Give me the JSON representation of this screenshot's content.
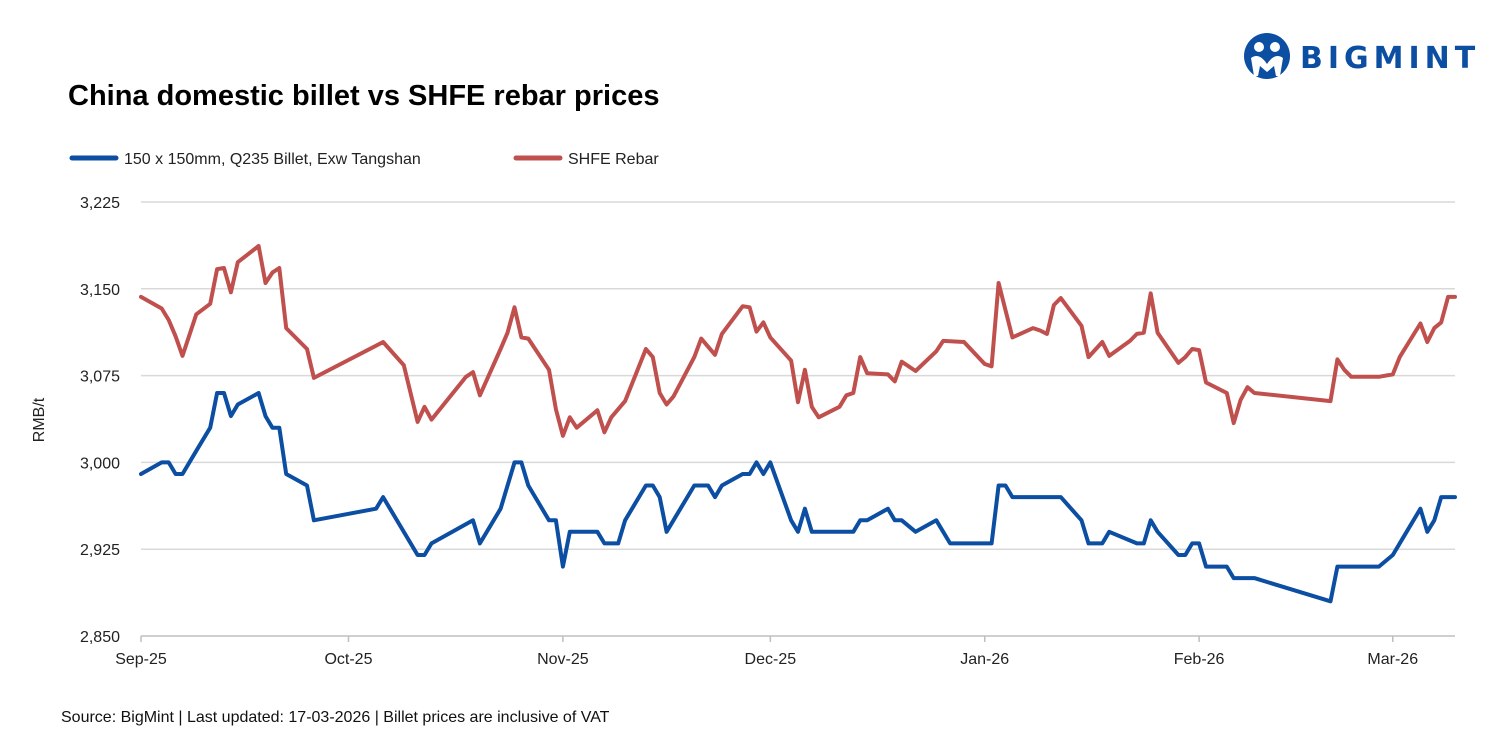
{
  "title": "China domestic billet vs SHFE rebar prices",
  "source_note": "Source: BigMint | Last updated: 17-03-2026 | Billet prices are inclusive of VAT",
  "logo": {
    "text": "BIGMINT",
    "color": "#0B4EA2"
  },
  "chart_data": {
    "type": "line",
    "title": "China domestic billet vs SHFE rebar prices",
    "xlabel": "",
    "ylabel": "RMB/t",
    "ylim": [
      2850,
      3225
    ],
    "yticks": [
      2850,
      2925,
      3000,
      3075,
      3150,
      3225
    ],
    "ytick_labels": [
      "2,850",
      "2,925",
      "3,000",
      "3,075",
      "3,150",
      "3,225"
    ],
    "xlim": [
      "2025-09-01",
      "2026-03-10"
    ],
    "xticks": [
      "2025-09-01",
      "2025-10-01",
      "2025-11-01",
      "2025-12-01",
      "2026-01-01",
      "2026-02-01",
      "2026-03-01"
    ],
    "xtick_labels": [
      "Sep-25",
      "Oct-25",
      "Nov-25",
      "Dec-25",
      "Jan-26",
      "Feb-26",
      "Mar-26"
    ],
    "grid": "horizontal",
    "legend_placement": "top-left",
    "series": [
      {
        "name": "150 x 150mm, Q235 Billet, Exw Tangshan",
        "color": "#0B4EA2",
        "points": [
          [
            "2025-09-01",
            2990
          ],
          [
            "2025-09-04",
            3000
          ],
          [
            "2025-09-05",
            3000
          ],
          [
            "2025-09-06",
            2990
          ],
          [
            "2025-09-07",
            2990
          ],
          [
            "2025-09-09",
            3010
          ],
          [
            "2025-09-11",
            3030
          ],
          [
            "2025-09-12",
            3060
          ],
          [
            "2025-09-13",
            3060
          ],
          [
            "2025-09-14",
            3040
          ],
          [
            "2025-09-15",
            3050
          ],
          [
            "2025-09-18",
            3060
          ],
          [
            "2025-09-19",
            3040
          ],
          [
            "2025-09-20",
            3030
          ],
          [
            "2025-09-21",
            3030
          ],
          [
            "2025-09-22",
            2990
          ],
          [
            "2025-09-25",
            2980
          ],
          [
            "2025-09-26",
            2950
          ],
          [
            "2025-10-05",
            2960
          ],
          [
            "2025-10-06",
            2970
          ],
          [
            "2025-10-11",
            2920
          ],
          [
            "2025-10-12",
            2920
          ],
          [
            "2025-10-13",
            2930
          ],
          [
            "2025-10-19",
            2950
          ],
          [
            "2025-10-20",
            2930
          ],
          [
            "2025-10-23",
            2960
          ],
          [
            "2025-10-25",
            3000
          ],
          [
            "2025-10-26",
            3000
          ],
          [
            "2025-10-27",
            2980
          ],
          [
            "2025-10-30",
            2950
          ],
          [
            "2025-10-31",
            2950
          ],
          [
            "2025-11-01",
            2910
          ],
          [
            "2025-11-02",
            2940
          ],
          [
            "2025-11-06",
            2940
          ],
          [
            "2025-11-07",
            2930
          ],
          [
            "2025-11-09",
            2930
          ],
          [
            "2025-11-10",
            2950
          ],
          [
            "2025-11-13",
            2980
          ],
          [
            "2025-11-14",
            2980
          ],
          [
            "2025-11-15",
            2970
          ],
          [
            "2025-11-16",
            2940
          ],
          [
            "2025-11-20",
            2980
          ],
          [
            "2025-11-22",
            2980
          ],
          [
            "2025-11-23",
            2970
          ],
          [
            "2025-11-24",
            2980
          ],
          [
            "2025-11-27",
            2990
          ],
          [
            "2025-11-28",
            2990
          ],
          [
            "2025-11-29",
            3000
          ],
          [
            "2025-11-30",
            2990
          ],
          [
            "2025-12-01",
            3000
          ],
          [
            "2025-12-04",
            2950
          ],
          [
            "2025-12-05",
            2940
          ],
          [
            "2025-12-06",
            2960
          ],
          [
            "2025-12-07",
            2940
          ],
          [
            "2025-12-13",
            2940
          ],
          [
            "2025-12-14",
            2950
          ],
          [
            "2025-12-15",
            2950
          ],
          [
            "2025-12-18",
            2960
          ],
          [
            "2025-12-19",
            2950
          ],
          [
            "2025-12-20",
            2950
          ],
          [
            "2025-12-22",
            2940
          ],
          [
            "2025-12-25",
            2950
          ],
          [
            "2025-12-27",
            2930
          ],
          [
            "2026-01-02",
            2930
          ],
          [
            "2026-01-03",
            2980
          ],
          [
            "2026-01-04",
            2980
          ],
          [
            "2026-01-05",
            2970
          ],
          [
            "2026-01-12",
            2970
          ],
          [
            "2026-01-15",
            2950
          ],
          [
            "2026-01-16",
            2930
          ],
          [
            "2026-01-18",
            2930
          ],
          [
            "2026-01-19",
            2940
          ],
          [
            "2026-01-23",
            2930
          ],
          [
            "2026-01-24",
            2930
          ],
          [
            "2026-01-25",
            2950
          ],
          [
            "2026-01-26",
            2940
          ],
          [
            "2026-01-29",
            2920
          ],
          [
            "2026-01-30",
            2920
          ],
          [
            "2026-01-31",
            2930
          ],
          [
            "2026-02-01",
            2930
          ],
          [
            "2026-02-02",
            2910
          ],
          [
            "2026-02-05",
            2910
          ],
          [
            "2026-02-06",
            2900
          ],
          [
            "2026-02-09",
            2900
          ],
          [
            "2026-02-20",
            2880
          ],
          [
            "2026-02-21",
            2910
          ],
          [
            "2026-02-27",
            2910
          ],
          [
            "2026-03-01",
            2920
          ],
          [
            "2026-03-05",
            2960
          ],
          [
            "2026-03-06",
            2940
          ],
          [
            "2026-03-07",
            2950
          ],
          [
            "2026-03-08",
            2970
          ],
          [
            "2026-03-10",
            2970
          ]
        ]
      },
      {
        "name": "SHFE Rebar",
        "color": "#C0504D",
        "points": [
          [
            "2025-09-01",
            3143
          ],
          [
            "2025-09-04",
            3133
          ],
          [
            "2025-09-05",
            3123
          ],
          [
            "2025-09-06",
            3109
          ],
          [
            "2025-09-07",
            3092
          ],
          [
            "2025-09-09",
            3128
          ],
          [
            "2025-09-11",
            3137
          ],
          [
            "2025-09-12",
            3167
          ],
          [
            "2025-09-13",
            3168
          ],
          [
            "2025-09-14",
            3147
          ],
          [
            "2025-09-15",
            3173
          ],
          [
            "2025-09-18",
            3187
          ],
          [
            "2025-09-19",
            3155
          ],
          [
            "2025-09-20",
            3164
          ],
          [
            "2025-09-21",
            3168
          ],
          [
            "2025-09-22",
            3116
          ],
          [
            "2025-09-25",
            3098
          ],
          [
            "2025-09-26",
            3073
          ],
          [
            "2025-10-06",
            3104
          ],
          [
            "2025-10-09",
            3084
          ],
          [
            "2025-10-11",
            3035
          ],
          [
            "2025-10-12",
            3048
          ],
          [
            "2025-10-13",
            3037
          ],
          [
            "2025-10-18",
            3074
          ],
          [
            "2025-10-19",
            3078
          ],
          [
            "2025-10-20",
            3058
          ],
          [
            "2025-10-23",
            3098
          ],
          [
            "2025-10-24",
            3112
          ],
          [
            "2025-10-25",
            3134
          ],
          [
            "2025-10-26",
            3108
          ],
          [
            "2025-10-27",
            3107
          ],
          [
            "2025-10-30",
            3080
          ],
          [
            "2025-10-31",
            3046
          ],
          [
            "2025-11-01",
            3023
          ],
          [
            "2025-11-02",
            3039
          ],
          [
            "2025-11-03",
            3030
          ],
          [
            "2025-11-06",
            3045
          ],
          [
            "2025-11-07",
            3026
          ],
          [
            "2025-11-08",
            3039
          ],
          [
            "2025-11-10",
            3053
          ],
          [
            "2025-11-13",
            3098
          ],
          [
            "2025-11-14",
            3091
          ],
          [
            "2025-11-15",
            3060
          ],
          [
            "2025-11-16",
            3050
          ],
          [
            "2025-11-17",
            3057
          ],
          [
            "2025-11-20",
            3091
          ],
          [
            "2025-11-21",
            3107
          ],
          [
            "2025-11-23",
            3093
          ],
          [
            "2025-11-24",
            3111
          ],
          [
            "2025-11-27",
            3135
          ],
          [
            "2025-11-28",
            3134
          ],
          [
            "2025-11-29",
            3113
          ],
          [
            "2025-11-30",
            3121
          ],
          [
            "2025-12-01",
            3108
          ],
          [
            "2025-12-04",
            3088
          ],
          [
            "2025-12-05",
            3052
          ],
          [
            "2025-12-06",
            3080
          ],
          [
            "2025-12-07",
            3048
          ],
          [
            "2025-12-08",
            3039
          ],
          [
            "2025-12-11",
            3048
          ],
          [
            "2025-12-12",
            3058
          ],
          [
            "2025-12-13",
            3060
          ],
          [
            "2025-12-14",
            3091
          ],
          [
            "2025-12-15",
            3077
          ],
          [
            "2025-12-18",
            3076
          ],
          [
            "2025-12-19",
            3070
          ],
          [
            "2025-12-20",
            3087
          ],
          [
            "2025-12-22",
            3079
          ],
          [
            "2025-12-25",
            3096
          ],
          [
            "2025-12-26",
            3105
          ],
          [
            "2025-12-29",
            3104
          ],
          [
            "2026-01-01",
            3085
          ],
          [
            "2026-01-02",
            3083
          ],
          [
            "2026-01-03",
            3155
          ],
          [
            "2026-01-05",
            3108
          ],
          [
            "2026-01-08",
            3116
          ],
          [
            "2026-01-09",
            3114
          ],
          [
            "2026-01-10",
            3111
          ],
          [
            "2026-01-11",
            3136
          ],
          [
            "2026-01-12",
            3142
          ],
          [
            "2026-01-15",
            3118
          ],
          [
            "2026-01-16",
            3091
          ],
          [
            "2026-01-18",
            3104
          ],
          [
            "2026-01-19",
            3092
          ],
          [
            "2026-01-22",
            3105
          ],
          [
            "2026-01-23",
            3111
          ],
          [
            "2026-01-24",
            3112
          ],
          [
            "2026-01-25",
            3146
          ],
          [
            "2026-01-26",
            3112
          ],
          [
            "2026-01-29",
            3086
          ],
          [
            "2026-01-30",
            3091
          ],
          [
            "2026-01-31",
            3098
          ],
          [
            "2026-02-01",
            3097
          ],
          [
            "2026-02-02",
            3069
          ],
          [
            "2026-02-05",
            3060
          ],
          [
            "2026-02-06",
            3034
          ],
          [
            "2026-02-07",
            3054
          ],
          [
            "2026-02-08",
            3065
          ],
          [
            "2026-02-09",
            3060
          ],
          [
            "2026-02-20",
            3053
          ],
          [
            "2026-02-21",
            3089
          ],
          [
            "2026-02-22",
            3080
          ],
          [
            "2026-02-23",
            3074
          ],
          [
            "2026-02-27",
            3074
          ],
          [
            "2026-03-01",
            3076
          ],
          [
            "2026-03-02",
            3091
          ],
          [
            "2026-03-05",
            3120
          ],
          [
            "2026-03-06",
            3104
          ],
          [
            "2026-03-07",
            3116
          ],
          [
            "2026-03-08",
            3121
          ],
          [
            "2026-03-09",
            3143
          ],
          [
            "2026-03-10",
            3143
          ]
        ]
      }
    ]
  }
}
